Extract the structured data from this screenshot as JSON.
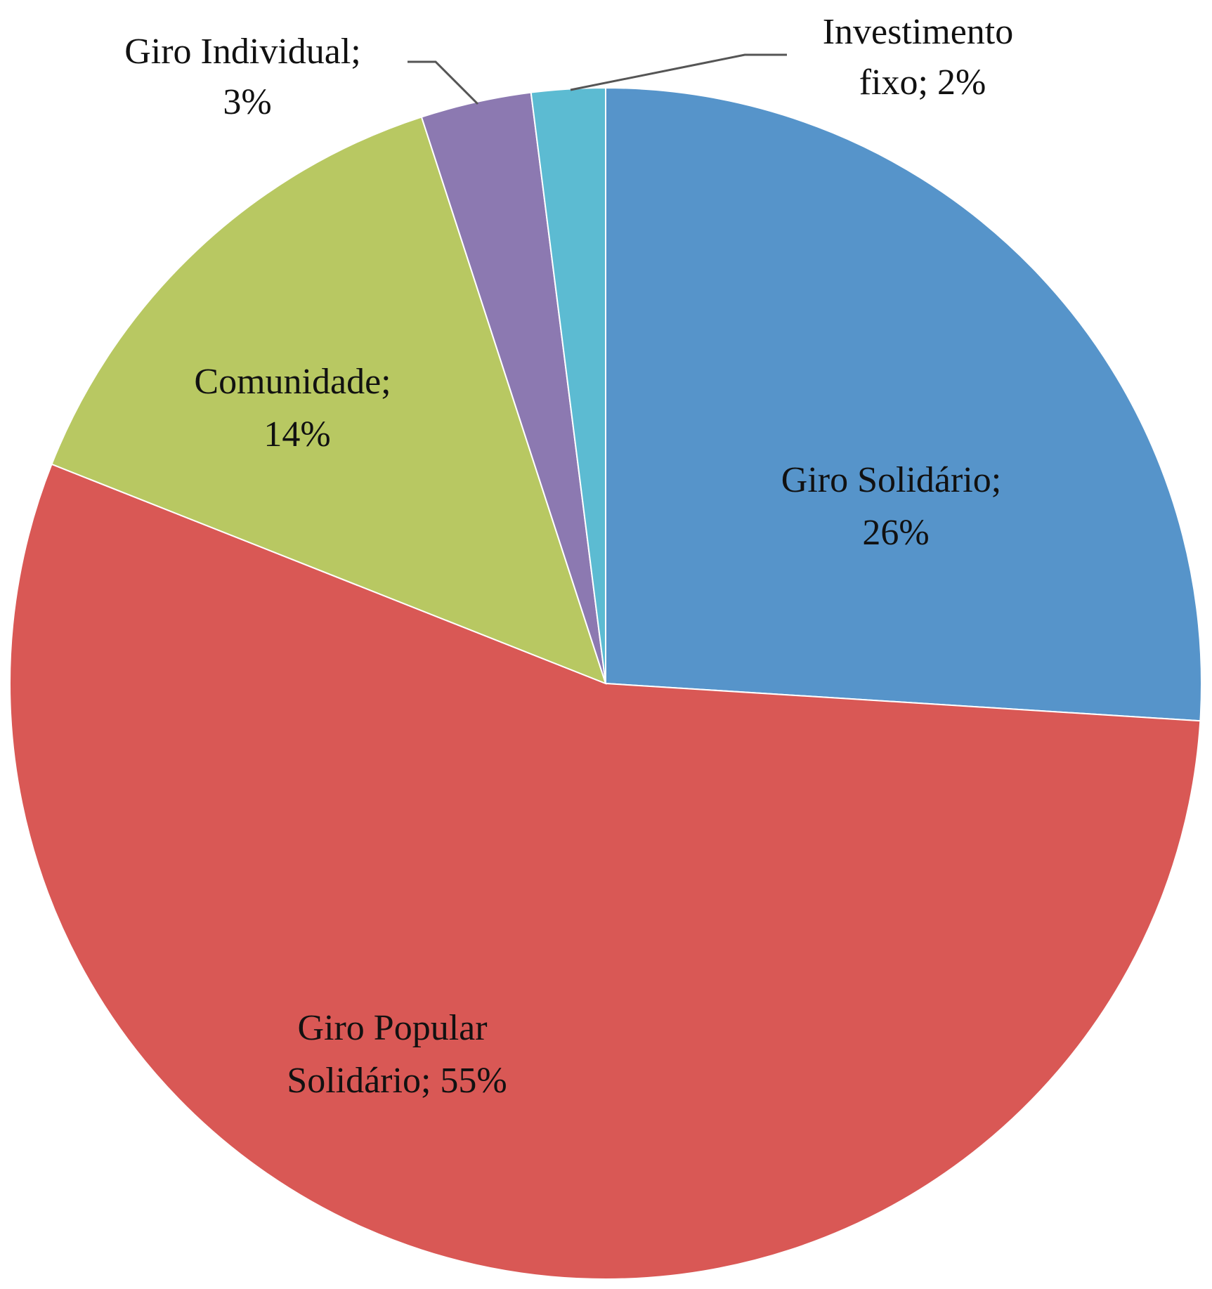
{
  "chart_data": {
    "type": "pie",
    "slices": [
      {
        "name": "Giro Solidário",
        "value": 26,
        "label_lines": [
          "Giro Solidário;",
          "26%"
        ],
        "color": "#5694CA"
      },
      {
        "name": "Giro Popular Solidário",
        "value": 55,
        "label_lines": [
          "Giro Popular",
          "Solidário; 55%"
        ],
        "color": "#D95855"
      },
      {
        "name": "Comunidade",
        "value": 14,
        "label_lines": [
          "Comunidade;",
          "14%"
        ],
        "color": "#B8C862"
      },
      {
        "name": "Giro Individual",
        "value": 3,
        "label_lines": [
          "Giro Individual;",
          "3%"
        ],
        "color": "#8C79B1"
      },
      {
        "name": "Investimento fixo",
        "value": 2,
        "label_lines": [
          "Investimento",
          "fixo; 2%"
        ],
        "color": "#5CBBD2"
      }
    ],
    "start_angle": "12 o'clock",
    "direction": "clockwise",
    "legend": "none"
  }
}
